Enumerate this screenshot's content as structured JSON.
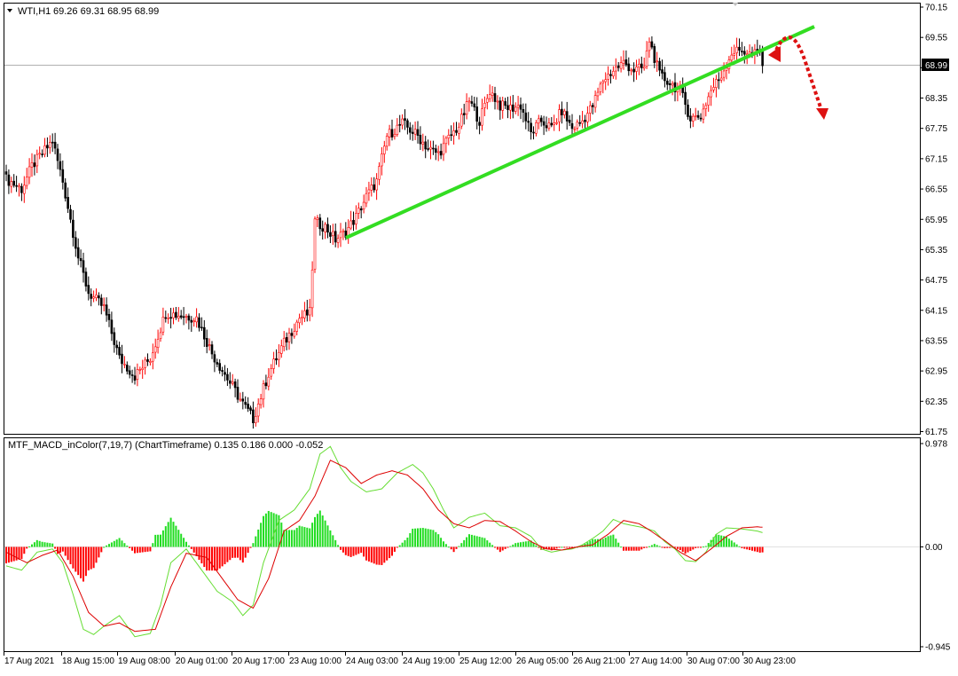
{
  "price_panel": {
    "header_symbol": "WTI,H1",
    "header_ohlc": "69.26 69.31 68.95 68.99",
    "current_price_label": "68.99"
  },
  "indicator_panel": {
    "header": "MTF_MACD_inColor(7,19,7) (ChartTimeframe) 0.135 0.186 0.000 -0.052"
  },
  "colors": {
    "bull_body": "#ffffff",
    "bull_outline": "#ff0000",
    "bear_body": "#000000",
    "trendline": "#33dd22",
    "forecast_arrow": "#dd1111",
    "hist_positive": "#22dd22",
    "hist_negative": "#ff0000",
    "signal_line_red": "#dd0000",
    "macd_line_green": "#66dd33"
  },
  "chart_data": [
    {
      "type": "candlestick",
      "symbol": "WTI",
      "timeframe": "H1",
      "y_ticks": [
        "70.15",
        "69.55",
        "68.95",
        "68.35",
        "67.75",
        "67.15",
        "66.55",
        "65.95",
        "65.35",
        "64.75",
        "64.15",
        "63.55",
        "62.95",
        "62.35",
        "61.75"
      ],
      "ylim": [
        61.75,
        70.15
      ],
      "x_ticks": [
        "17 Aug 2021",
        "18 Aug 15:00",
        "19 Aug 08:00",
        "20 Aug 01:00",
        "20 Aug 17:00",
        "23 Aug 10:00",
        "24 Aug 03:00",
        "24 Aug 19:00",
        "25 Aug 12:00",
        "26 Aug 05:00",
        "26 Aug 21:00",
        "27 Aug 14:00",
        "30 Aug 07:00",
        "30 Aug 23:00"
      ],
      "anchors": [
        [
          0,
          66.75
        ],
        [
          6,
          66.55
        ],
        [
          10,
          67.0
        ],
        [
          18,
          67.5
        ],
        [
          22,
          66.7
        ],
        [
          28,
          65.2
        ],
        [
          32,
          64.5
        ],
        [
          38,
          64.2
        ],
        [
          44,
          63.2
        ],
        [
          50,
          62.85
        ],
        [
          56,
          63.2
        ],
        [
          62,
          64.1
        ],
        [
          68,
          64.05
        ],
        [
          74,
          64.0
        ],
        [
          80,
          63.3
        ],
        [
          86,
          62.8
        ],
        [
          92,
          62.3
        ],
        [
          96,
          62.0
        ],
        [
          102,
          62.9
        ],
        [
          108,
          63.5
        ],
        [
          114,
          64.0
        ],
        [
          118,
          64.1
        ],
        [
          120,
          65.9
        ],
        [
          124,
          65.8
        ],
        [
          128,
          65.55
        ],
        [
          132,
          65.7
        ],
        [
          136,
          66.0
        ],
        [
          140,
          66.4
        ],
        [
          144,
          66.7
        ],
        [
          148,
          67.6
        ],
        [
          154,
          67.85
        ],
        [
          160,
          67.6
        ],
        [
          164,
          67.35
        ],
        [
          168,
          67.25
        ],
        [
          172,
          67.55
        ],
        [
          176,
          67.8
        ],
        [
          180,
          68.3
        ],
        [
          184,
          67.9
        ],
        [
          188,
          68.5
        ],
        [
          192,
          68.2
        ],
        [
          196,
          68.15
        ],
        [
          200,
          68.2
        ],
        [
          204,
          67.65
        ],
        [
          208,
          67.9
        ],
        [
          212,
          67.75
        ],
        [
          216,
          68.1
        ],
        [
          220,
          67.75
        ],
        [
          224,
          67.9
        ],
        [
          228,
          68.2
        ],
        [
          232,
          68.7
        ],
        [
          236,
          68.9
        ],
        [
          240,
          69.05
        ],
        [
          244,
          68.9
        ],
        [
          248,
          68.95
        ],
        [
          250,
          69.5
        ],
        [
          254,
          68.8
        ],
        [
          258,
          68.65
        ],
        [
          262,
          68.5
        ],
        [
          266,
          67.95
        ],
        [
          270,
          68.0
        ],
        [
          274,
          68.5
        ],
        [
          278,
          68.8
        ],
        [
          282,
          69.25
        ],
        [
          286,
          69.3
        ],
        [
          290,
          69.2
        ],
        [
          293,
          69.26
        ],
        [
          294,
          68.99
        ]
      ],
      "last_close": 68.99
    },
    {
      "type": "line",
      "name": "MTF_MACD_inColor(7,19,7)",
      "y_ticks": [
        "0.978",
        "0.00",
        "-0.945"
      ],
      "ylim": [
        -0.945,
        0.978
      ],
      "last_values": {
        "macd": 0.135,
        "signal": 0.186,
        "hist_up": 0.0,
        "hist_down": -0.052
      },
      "macd_anchors": [
        [
          0,
          -0.18
        ],
        [
          6,
          -0.22
        ],
        [
          12,
          -0.05
        ],
        [
          18,
          -0.02
        ],
        [
          22,
          -0.15
        ],
        [
          26,
          -0.45
        ],
        [
          30,
          -0.78
        ],
        [
          34,
          -0.83
        ],
        [
          38,
          -0.75
        ],
        [
          44,
          -0.65
        ],
        [
          50,
          -0.85
        ],
        [
          56,
          -0.82
        ],
        [
          60,
          -0.55
        ],
        [
          64,
          -0.15
        ],
        [
          70,
          -0.02
        ],
        [
          76,
          -0.22
        ],
        [
          82,
          -0.42
        ],
        [
          88,
          -0.52
        ],
        [
          92,
          -0.65
        ],
        [
          96,
          -0.55
        ],
        [
          100,
          -0.15
        ],
        [
          106,
          0.25
        ],
        [
          112,
          0.35
        ],
        [
          118,
          0.55
        ],
        [
          122,
          0.88
        ],
        [
          126,
          0.95
        ],
        [
          130,
          0.75
        ],
        [
          134,
          0.62
        ],
        [
          140,
          0.52
        ],
        [
          146,
          0.55
        ],
        [
          152,
          0.7
        ],
        [
          158,
          0.78
        ],
        [
          162,
          0.7
        ],
        [
          166,
          0.55
        ],
        [
          170,
          0.35
        ],
        [
          174,
          0.18
        ],
        [
          180,
          0.28
        ],
        [
          186,
          0.32
        ],
        [
          192,
          0.2
        ],
        [
          198,
          0.18
        ],
        [
          204,
          0.1
        ],
        [
          208,
          -0.02
        ],
        [
          212,
          -0.05
        ],
        [
          216,
          -0.03
        ],
        [
          220,
          -0.02
        ],
        [
          224,
          0.02
        ],
        [
          228,
          0.08
        ],
        [
          232,
          0.15
        ],
        [
          236,
          0.26
        ],
        [
          240,
          0.22
        ],
        [
          244,
          0.2
        ],
        [
          248,
          0.18
        ],
        [
          252,
          0.15
        ],
        [
          256,
          0.05
        ],
        [
          260,
          -0.02
        ],
        [
          264,
          -0.13
        ],
        [
          268,
          -0.14
        ],
        [
          272,
          -0.05
        ],
        [
          276,
          0.12
        ],
        [
          280,
          0.18
        ],
        [
          286,
          0.17
        ],
        [
          292,
          0.15
        ],
        [
          294,
          0.135
        ]
      ],
      "signal_anchors": [
        [
          0,
          -0.05
        ],
        [
          8,
          -0.15
        ],
        [
          14,
          -0.08
        ],
        [
          20,
          -0.03
        ],
        [
          26,
          -0.28
        ],
        [
          32,
          -0.62
        ],
        [
          38,
          -0.75
        ],
        [
          44,
          -0.72
        ],
        [
          50,
          -0.8
        ],
        [
          58,
          -0.78
        ],
        [
          64,
          -0.38
        ],
        [
          70,
          -0.06
        ],
        [
          78,
          -0.1
        ],
        [
          84,
          -0.3
        ],
        [
          90,
          -0.5
        ],
        [
          96,
          -0.58
        ],
        [
          102,
          -0.3
        ],
        [
          108,
          0.15
        ],
        [
          114,
          0.25
        ],
        [
          120,
          0.48
        ],
        [
          126,
          0.82
        ],
        [
          132,
          0.75
        ],
        [
          138,
          0.6
        ],
        [
          144,
          0.68
        ],
        [
          150,
          0.72
        ],
        [
          156,
          0.68
        ],
        [
          162,
          0.55
        ],
        [
          168,
          0.35
        ],
        [
          174,
          0.22
        ],
        [
          180,
          0.18
        ],
        [
          186,
          0.25
        ],
        [
          192,
          0.24
        ],
        [
          198,
          0.15
        ],
        [
          204,
          0.05
        ],
        [
          210,
          -0.02
        ],
        [
          216,
          -0.03
        ],
        [
          222,
          0.0
        ],
        [
          228,
          0.02
        ],
        [
          234,
          0.12
        ],
        [
          240,
          0.25
        ],
        [
          246,
          0.22
        ],
        [
          250,
          0.16
        ],
        [
          256,
          0.06
        ],
        [
          262,
          -0.05
        ],
        [
          268,
          -0.13
        ],
        [
          274,
          -0.02
        ],
        [
          280,
          0.1
        ],
        [
          286,
          0.18
        ],
        [
          292,
          0.19
        ],
        [
          294,
          0.186
        ]
      ]
    }
  ]
}
